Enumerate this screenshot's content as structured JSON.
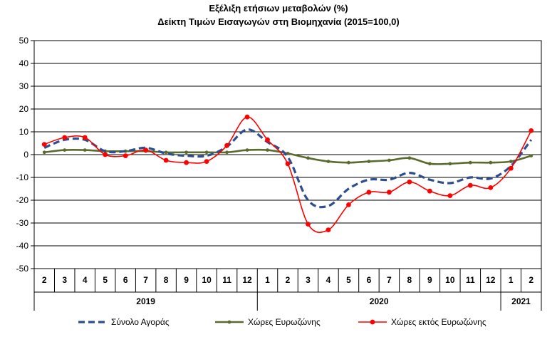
{
  "chart_data": {
    "type": "line",
    "title": "Εξέλιξη ετήσιων μεταβολών (%)",
    "subtitle": "Δείκτη Τιμών Εισαγωγών στη Βιομηχανία (2015=100,0)",
    "xlabel": "",
    "ylabel": "",
    "ylim": [
      -50,
      50
    ],
    "yticks": [
      "50",
      "40",
      "30",
      "20",
      "10",
      "0",
      "-10",
      "-20",
      "-30",
      "-40",
      "-50"
    ],
    "categories": [
      "2",
      "3",
      "4",
      "5",
      "6",
      "7",
      "8",
      "9",
      "10",
      "11",
      "12",
      "1",
      "2",
      "3",
      "4",
      "5",
      "6",
      "7",
      "8",
      "9",
      "10",
      "11",
      "12",
      "1",
      "2"
    ],
    "year_groups": [
      {
        "label": "2019",
        "span": 11
      },
      {
        "label": "2020",
        "span": 12
      },
      {
        "label": "2021",
        "span": 2
      }
    ],
    "grid": true,
    "legend_position": "bottom",
    "series": [
      {
        "name": "Σύνολο Αγοράς",
        "color": "#2E4F8F",
        "style": "dashed",
        "values": [
          3,
          6.5,
          6.5,
          1.5,
          1.5,
          3,
          0.5,
          -0.5,
          -0.5,
          3.5,
          11,
          5.5,
          -1,
          -20,
          -22.5,
          -15,
          -11,
          -11,
          -8,
          -11,
          -12.5,
          -10,
          -10.5,
          -5,
          6.5
        ]
      },
      {
        "name": "Χώρες Ευρωζώνης",
        "color": "#5A6B2E",
        "style": "solid",
        "values": [
          1,
          2,
          2,
          1.5,
          1.5,
          1.5,
          1,
          1,
          1,
          1,
          2,
          2,
          0.5,
          -1.5,
          -3,
          -3.5,
          -3,
          -2.5,
          -1.5,
          -4,
          -4,
          -3.5,
          -3.5,
          -3,
          -0.5
        ]
      },
      {
        "name": "Χώρες εκτός Ευρωζώνης",
        "color": "#FF0000",
        "style": "solid",
        "values": [
          4.5,
          7.5,
          7.5,
          0,
          -0.5,
          2,
          -2.5,
          -3.5,
          -3,
          4,
          16.5,
          6.5,
          -4,
          -30.5,
          -33,
          -22,
          -16.5,
          -16.5,
          -12,
          -16,
          -18,
          -13.5,
          -14.5,
          -6,
          10.5
        ]
      }
    ]
  }
}
